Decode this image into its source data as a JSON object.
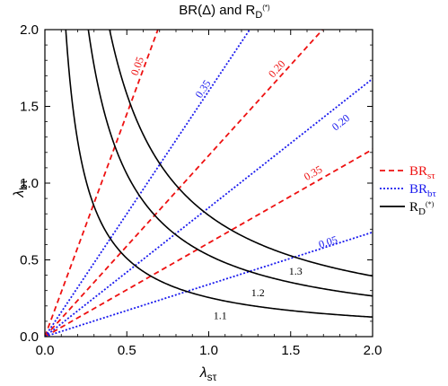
{
  "chart_data": {
    "type": "line",
    "title": {
      "text": "BR(Δ) and R",
      "sub": "D",
      "sup": "(*)"
    },
    "xlabel": {
      "main": "λ",
      "sub": "sτ"
    },
    "ylabel": {
      "main": "λ",
      "sub": "bτ"
    },
    "xlim": [
      0,
      2
    ],
    "ylim": [
      0,
      2
    ],
    "xticks": [
      "0.0",
      "0.5",
      "1.0",
      "1.5",
      "2.0"
    ],
    "yticks": [
      "0.0",
      "0.5",
      "1.0",
      "1.5",
      "2.0"
    ],
    "grid": false,
    "legend_position": "right",
    "colors": {
      "red": "#ee1111",
      "blue": "#1a1aee",
      "black": "#000000"
    },
    "legend": [
      {
        "main": "BR",
        "sub": "sτ",
        "sup": "",
        "color": "#ee1111",
        "dash": "dashed"
      },
      {
        "main": "BR",
        "sub": "bτ",
        "sup": "",
        "color": "#1a1aee",
        "dash": "dotted"
      },
      {
        "main": "R",
        "sub": "D",
        "sup": "(*)",
        "color": "#000000",
        "dash": "solid"
      }
    ],
    "series": [
      {
        "family": "BR_stau",
        "label": "0.05",
        "slope": 2.9,
        "color": "#ee1111",
        "dash": "dashed",
        "label_at": [
          0.57,
          1.76
        ]
      },
      {
        "family": "BR_stau",
        "label": "0.20",
        "slope": 1.18,
        "color": "#ee1111",
        "dash": "dashed",
        "label_at": [
          1.42,
          1.74
        ]
      },
      {
        "family": "BR_stau",
        "label": "0.35",
        "slope": 0.61,
        "color": "#ee1111",
        "dash": "dashed",
        "label_at": [
          1.64,
          1.06
        ]
      },
      {
        "family": "BR_btau",
        "label": "0.35",
        "slope": 1.6,
        "color": "#1a1aee",
        "dash": "dotted",
        "label_at": [
          0.97,
          1.61
        ]
      },
      {
        "family": "BR_btau",
        "label": "0.20",
        "slope": 0.84,
        "color": "#1a1aee",
        "dash": "dotted",
        "label_at": [
          1.81,
          1.39
        ]
      },
      {
        "family": "BR_btau",
        "label": "0.05",
        "slope": 0.34,
        "color": "#1a1aee",
        "dash": "dotted",
        "label_at": [
          1.73,
          0.61
        ]
      },
      {
        "family": "R_D",
        "label": "1.1",
        "k": 0.255,
        "color": "#000000",
        "dash": "solid",
        "label_at": [
          1.07,
          0.13
        ]
      },
      {
        "family": "R_D",
        "label": "1.2",
        "k": 0.53,
        "color": "#000000",
        "dash": "solid",
        "label_at": [
          1.3,
          0.28
        ]
      },
      {
        "family": "R_D",
        "label": "1.3",
        "k": 0.79,
        "color": "#000000",
        "dash": "solid",
        "label_at": [
          1.53,
          0.42
        ]
      }
    ]
  }
}
